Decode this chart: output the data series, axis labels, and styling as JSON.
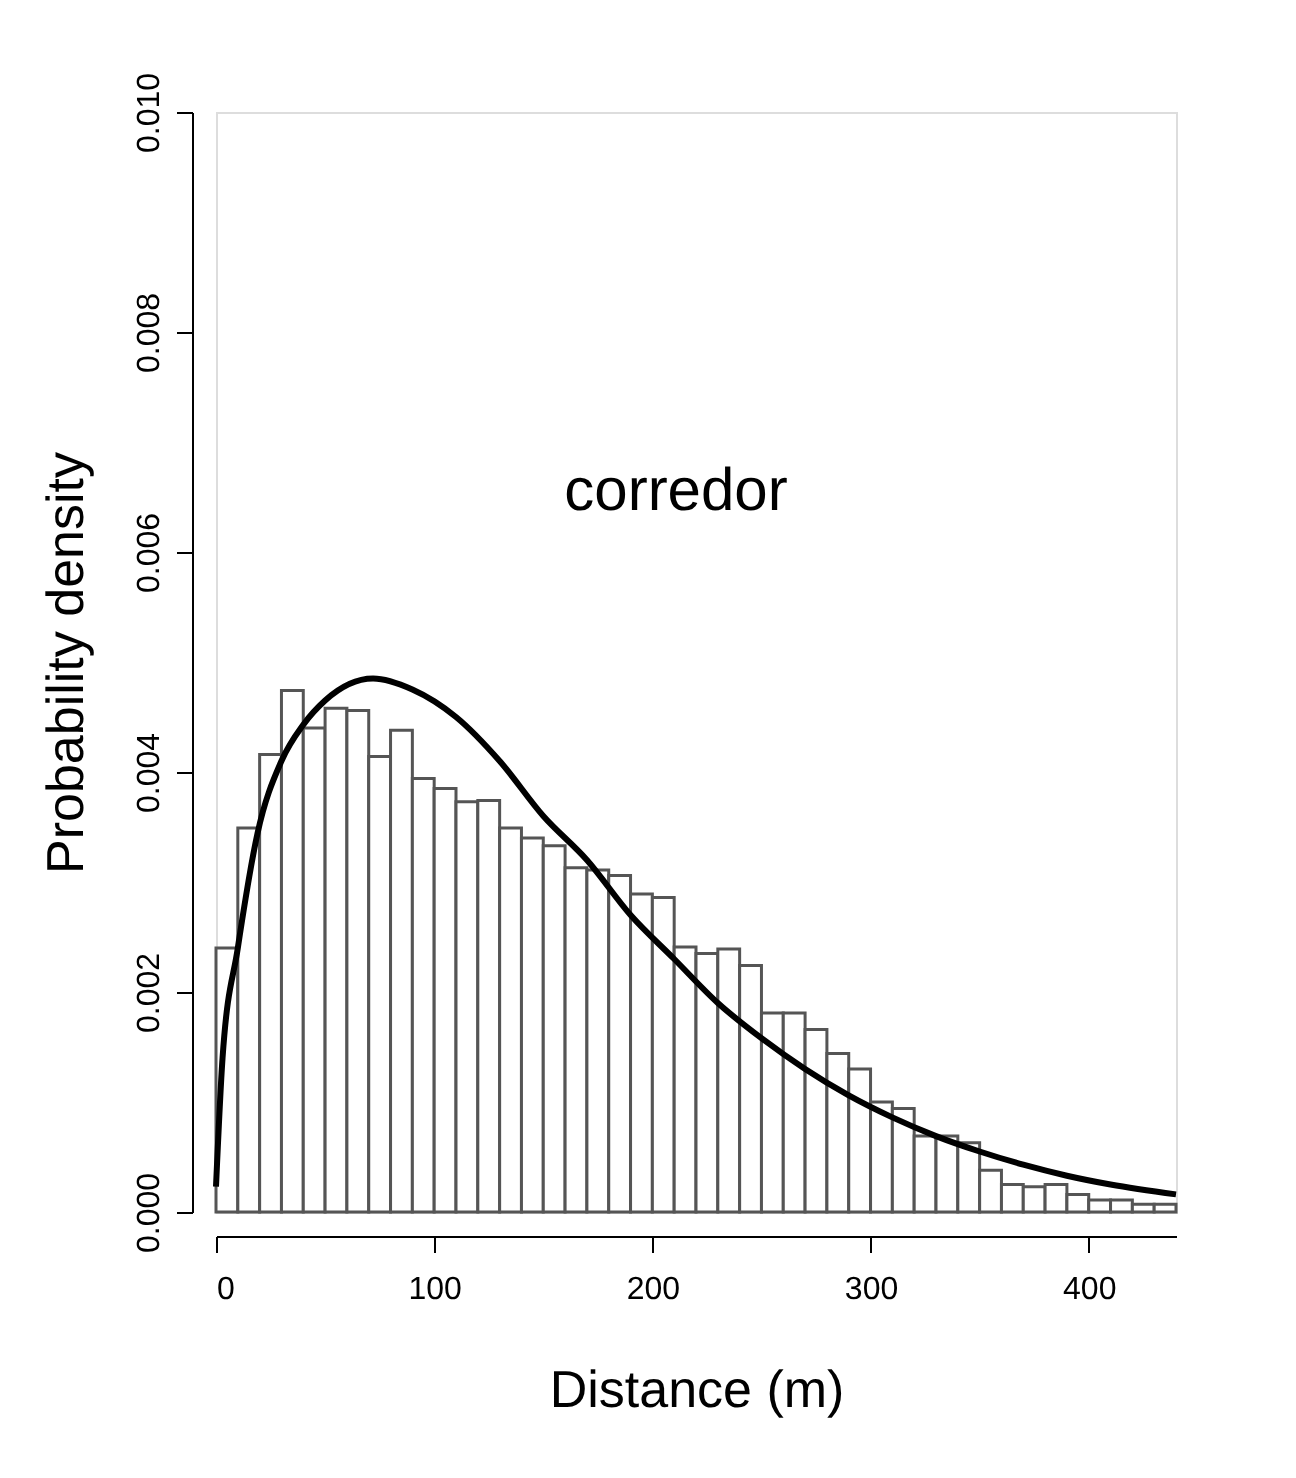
{
  "chart_data": [
    {
      "type": "histogram",
      "xlabel": "Distance (m)",
      "ylabel": "Probability density",
      "annotations": [
        "corredor"
      ],
      "bins": [
        0,
        10,
        20,
        30,
        40,
        50,
        60,
        70,
        80,
        90,
        100,
        110,
        120,
        130,
        140,
        150,
        160,
        170,
        180,
        190,
        200,
        210,
        220,
        230,
        240,
        250,
        260,
        270,
        280,
        290,
        300,
        310,
        320,
        330,
        340,
        350,
        360,
        370,
        380,
        390,
        400,
        410,
        420,
        430,
        440
      ],
      "values": [
        0.0024,
        0.00349,
        0.00416,
        0.00474,
        0.0044,
        0.00458,
        0.00456,
        0.00414,
        0.00438,
        0.00394,
        0.00385,
        0.00373,
        0.00374,
        0.00349,
        0.0034,
        0.00333,
        0.00313,
        0.00311,
        0.00306,
        0.00289,
        0.00286,
        0.00241,
        0.00235,
        0.00239,
        0.00224,
        0.00181,
        0.00181,
        0.00166,
        0.00144,
        0.0013,
        0.001,
        0.00094,
        0.00069,
        0.00069,
        0.00063,
        0.00038,
        0.00025,
        0.00023,
        0.00025,
        0.00016,
        0.00011,
        0.00011,
        7e-05,
        7e-05
      ],
      "color": "#ffffff",
      "xlim": [
        0,
        440
      ],
      "xticks": [
        0,
        100,
        200,
        300,
        400
      ],
      "ylim": [
        0,
        0.01
      ],
      "yticks": [
        {
          "value": 0,
          "label": "0.000"
        },
        {
          "value": 0.002,
          "label": "0.002"
        },
        {
          "value": 0.004,
          "label": "0.004"
        },
        {
          "value": 0.006,
          "label": "0.006"
        },
        {
          "value": 0.008,
          "label": "0.008"
        },
        {
          "value": 0.01,
          "label": "0.010"
        }
      ],
      "grid": false,
      "series": [
        {
          "type": "line",
          "color": "#000000",
          "x": [
            0,
            3,
            10,
            19,
            30,
            40,
            50,
            72,
            90,
            110,
            130,
            150,
            170,
            190,
            210,
            230,
            250,
            270,
            290,
            310,
            330,
            350,
            370,
            390,
            410,
            440
          ],
          "values": [
            0.00023,
            0.0014,
            0.0024,
            0.00344,
            0.0041,
            0.00443,
            0.00465,
            0.00485,
            0.00475,
            0.0045,
            0.0041,
            0.0036,
            0.0032,
            0.0027,
            0.0023,
            0.0019,
            0.00158,
            0.0013,
            0.00106,
            0.00086,
            0.00069,
            0.00055,
            0.00043,
            0.00033,
            0.00025,
            0.00016
          ]
        }
      ]
    }
  ]
}
